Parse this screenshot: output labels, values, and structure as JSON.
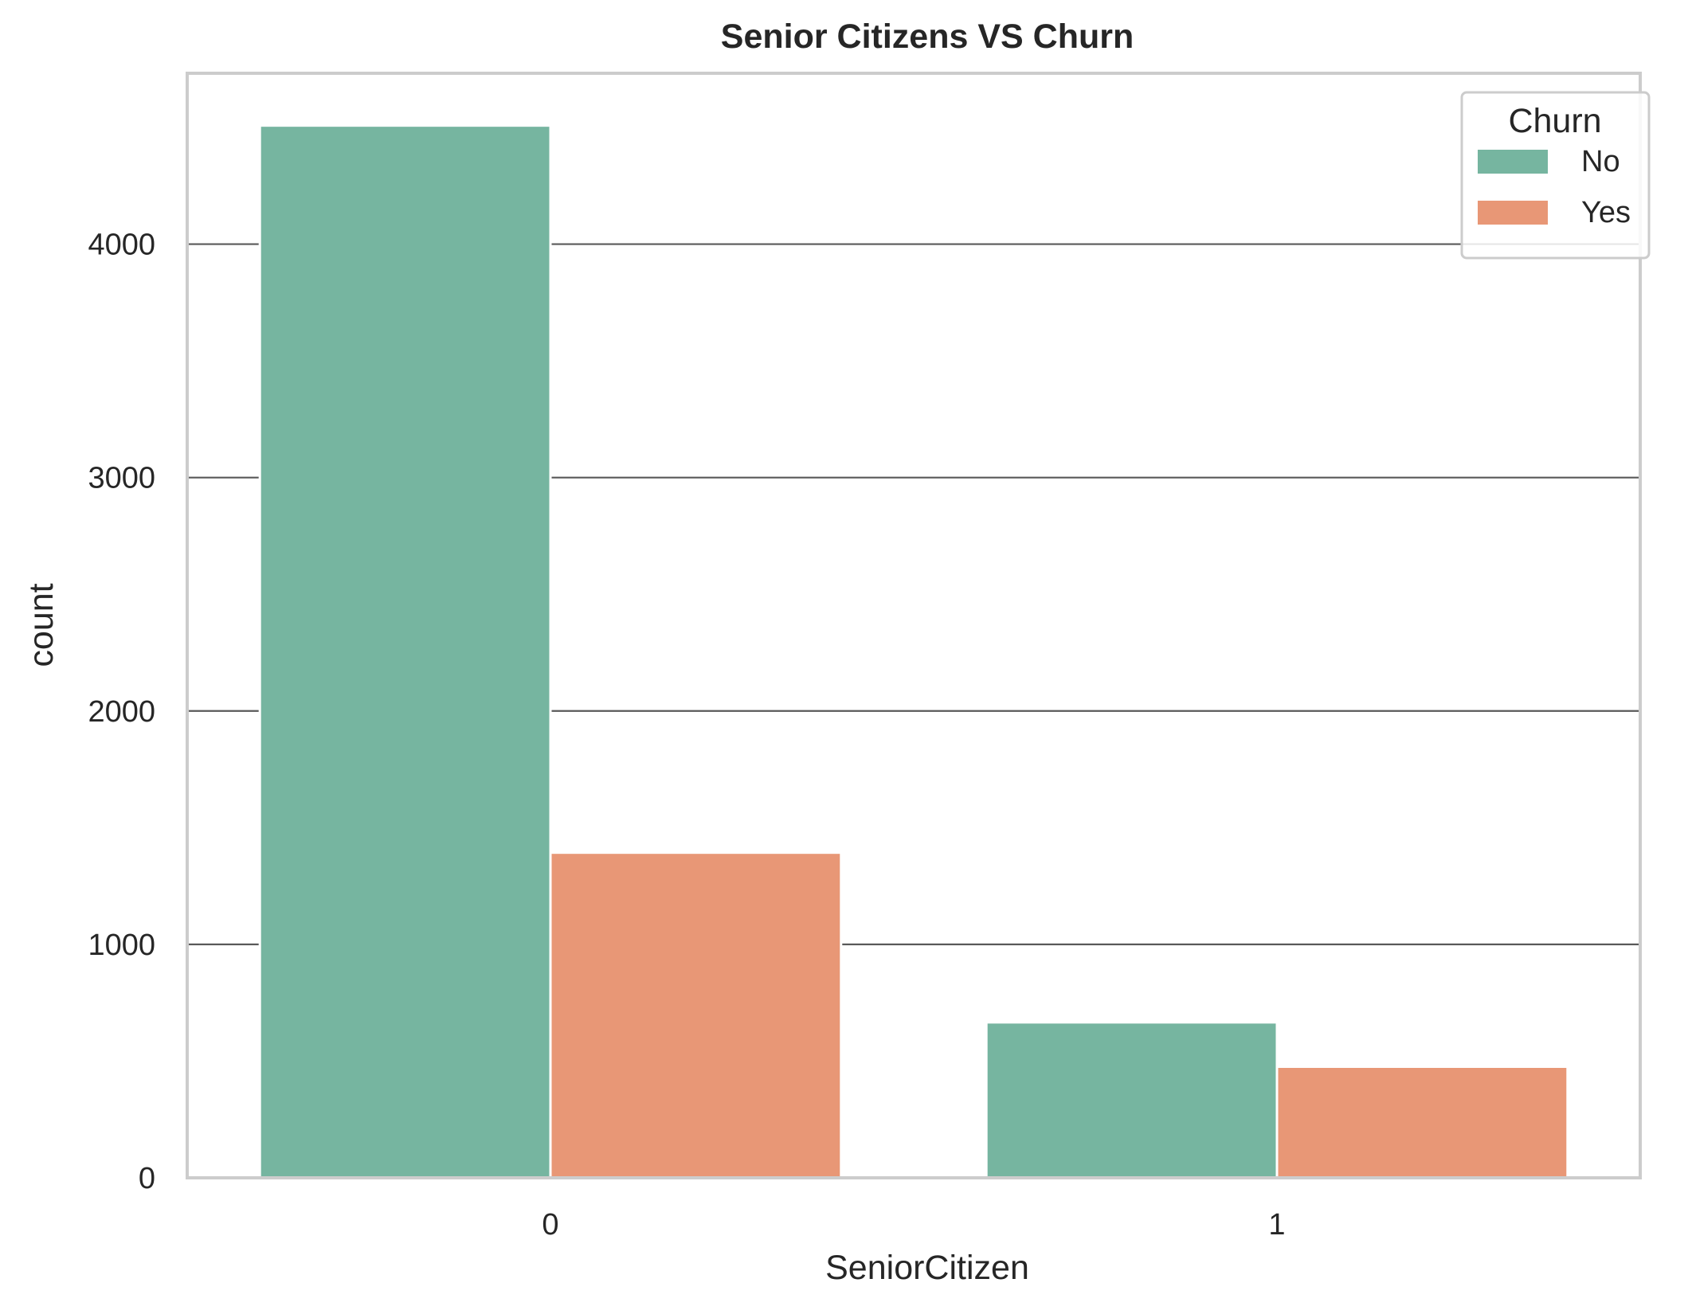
{
  "chart_data": {
    "type": "bar",
    "title": "Senior Citizens VS Churn",
    "xlabel": "SeniorCitizen",
    "ylabel": "count",
    "categories": [
      "0",
      "1"
    ],
    "series": [
      {
        "name": "No",
        "values": [
          4508,
          666
        ],
        "color": "#76b5a0"
      },
      {
        "name": "Yes",
        "values": [
          1393,
          476
        ],
        "color": "#e89776"
      }
    ],
    "ylim": [
      0,
      4732
    ],
    "yticks": [
      0,
      1000,
      2000,
      3000,
      4000
    ],
    "grid": true,
    "legend": {
      "title": "Churn",
      "position": "top-right"
    }
  }
}
